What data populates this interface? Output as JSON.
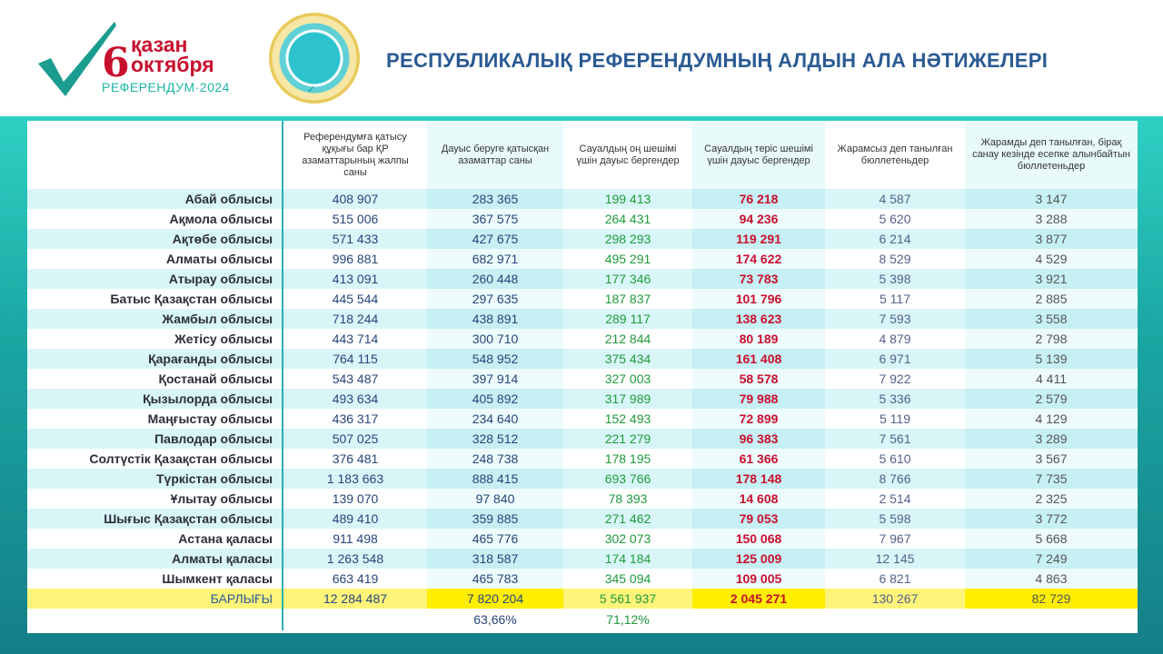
{
  "header": {
    "logo_day": "6",
    "logo_month_kk": "қазан",
    "logo_month_ru": "октября",
    "logo_sub": "РЕФЕРЕНДУМ·2024",
    "title": "РЕСПУБЛИКАЛЫҚ РЕФЕРЕНДУМНЫҢ АЛДЫН АЛА НӘТИЖЕЛЕРІ"
  },
  "colors": {
    "accent": "#2bb0ad",
    "yes": "#1f9a3b",
    "no": "#c8102e",
    "title": "#2a5a93",
    "total": "#ffee00"
  },
  "columns": [
    "Референдумға қатысу құқығы бар ҚР азаматтарының жалпы саны",
    "Дауыс беруге қатысқан азаматтар саны",
    "Сауалдың оң шешімі үшін дауыс бергендер",
    "Сауалдың теріс шешімі үшін дауыс бергендер",
    "Жарамсыз деп танылған бюллетеньдер",
    "Жарамды деп танылған, бірақ санау кезінде есепке алынбайтын бюллетеньдер"
  ],
  "rows": [
    [
      "Абай облысы",
      "408 907",
      "283 365",
      "199 413",
      "76 218",
      "4 587",
      "3 147"
    ],
    [
      "Ақмола облысы",
      "515 006",
      "367 575",
      "264 431",
      "94 236",
      "5 620",
      "3 288"
    ],
    [
      "Ақтөбе облысы",
      "571 433",
      "427 675",
      "298 293",
      "119 291",
      "6 214",
      "3 877"
    ],
    [
      "Алматы облысы",
      "996 881",
      "682 971",
      "495 291",
      "174 622",
      "8 529",
      "4 529"
    ],
    [
      "Атырау облысы",
      "413 091",
      "260 448",
      "177 346",
      "73 783",
      "5 398",
      "3 921"
    ],
    [
      "Батыс Қазақстан облысы",
      "445 544",
      "297 635",
      "187 837",
      "101 796",
      "5 117",
      "2 885"
    ],
    [
      "Жамбыл облысы",
      "718 244",
      "438 891",
      "289 117",
      "138 623",
      "7 593",
      "3 558"
    ],
    [
      "Жетісу облысы",
      "443 714",
      "300 710",
      "212 844",
      "80 189",
      "4 879",
      "2 798"
    ],
    [
      "Қарағанды облысы",
      "764 115",
      "548 952",
      "375 434",
      "161 408",
      "6 971",
      "5 139"
    ],
    [
      "Қостанай облысы",
      "543 487",
      "397 914",
      "327 003",
      "58 578",
      "7 922",
      "4 411"
    ],
    [
      "Қызылорда облысы",
      "493 634",
      "405 892",
      "317 989",
      "79 988",
      "5 336",
      "2 579"
    ],
    [
      "Маңғыстау облысы",
      "436 317",
      "234 640",
      "152 493",
      "72 899",
      "5 119",
      "4 129"
    ],
    [
      "Павлодар облысы",
      "507 025",
      "328 512",
      "221 279",
      "96 383",
      "7 561",
      "3 289"
    ],
    [
      "Солтүстік Қазақстан облысы",
      "376 481",
      "248 738",
      "178 195",
      "61 366",
      "5 610",
      "3 567"
    ],
    [
      "Түркістан облысы",
      "1 183 663",
      "888 415",
      "693 766",
      "178 148",
      "8 766",
      "7 735"
    ],
    [
      "Ұлытау облысы",
      "139 070",
      "97 840",
      "78 393",
      "14 608",
      "2 514",
      "2 325"
    ],
    [
      "Шығыс Қазақстан облысы",
      "489 410",
      "359 885",
      "271 462",
      "79 053",
      "5 598",
      "3 772"
    ],
    [
      "Астана қаласы",
      "911 498",
      "465 776",
      "302 073",
      "150 068",
      "7 967",
      "5 668"
    ],
    [
      "Алматы қаласы",
      "1 263 548",
      "318 587",
      "174 184",
      "125 009",
      "12 145",
      "7 249"
    ],
    [
      "Шымкент қаласы",
      "663 419",
      "465 783",
      "345 094",
      "109 005",
      "6 821",
      "4 863"
    ]
  ],
  "total": [
    "БАРЛЫҒЫ",
    "12 284 487",
    "7 820 204",
    "5 561 937",
    "2 045 271",
    "130 267",
    "82 729"
  ],
  "percentages": {
    "turnout": "63,66%",
    "yes": "71,12%"
  }
}
